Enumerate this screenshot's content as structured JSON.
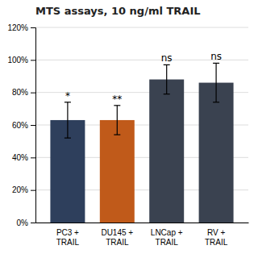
{
  "chart_data": {
    "type": "bar",
    "title": "MTS assays, 10 ng/ml TRAIL",
    "categories": [
      "PC3 +\nTRAIL",
      "DU145 +\nTRAIL",
      "LNCap +\nTRAIL",
      "RV +\nTRAIL"
    ],
    "values": [
      63,
      63,
      88,
      86
    ],
    "errors": [
      11,
      9,
      9,
      12
    ],
    "annotations": [
      "*",
      "**",
      "ns",
      "ns"
    ],
    "colors": [
      "#2e3f5c",
      "#c05a1a",
      "#3a4250",
      "#3a4250"
    ],
    "ylim": [
      0,
      120
    ],
    "yticks": [
      {
        "value": 0,
        "label": "0%"
      },
      {
        "value": 20,
        "label": "20%"
      },
      {
        "value": 40,
        "label": "40%"
      },
      {
        "value": 60,
        "label": "60%"
      },
      {
        "value": 80,
        "label": "80%"
      },
      {
        "value": 100,
        "label": "100%"
      },
      {
        "value": 120,
        "label": "120%"
      }
    ],
    "grid": true
  }
}
